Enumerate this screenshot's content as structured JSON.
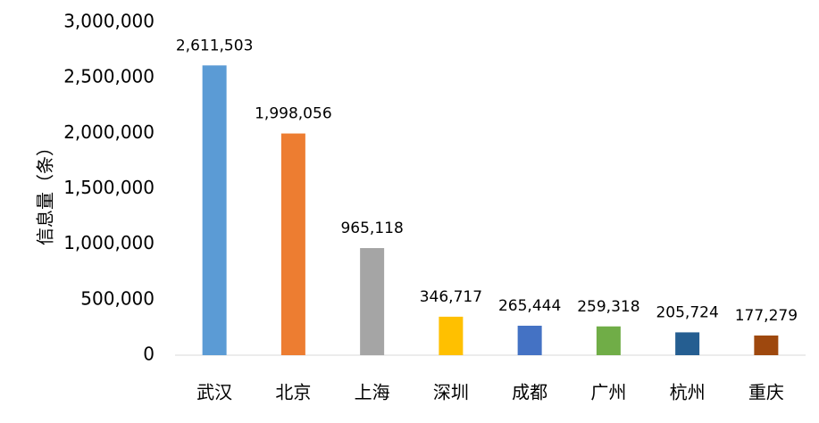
{
  "chart_data": {
    "type": "bar",
    "title": "",
    "xlabel": "",
    "ylabel": "信息量（条）",
    "ylim": [
      0,
      3000000
    ],
    "y_ticks": [
      0,
      500000,
      1000000,
      1500000,
      2000000,
      2500000,
      3000000
    ],
    "y_tick_labels": [
      "0",
      "500,000",
      "1,000,000",
      "1,500,000",
      "2,000,000",
      "2,500,000",
      "3,000,000"
    ],
    "categories": [
      "武汉",
      "北京",
      "上海",
      "深圳",
      "成都",
      "广州",
      "杭州",
      "重庆"
    ],
    "values": [
      2611503,
      1998056,
      965118,
      346717,
      265444,
      259318,
      205724,
      177279
    ],
    "value_labels": [
      "2,611,503",
      "1,998,056",
      "965,118",
      "346,717",
      "265,444",
      "259,318",
      "205,724",
      "177,279"
    ],
    "colors": [
      "#5b9bd5",
      "#ed7d31",
      "#a5a5a5",
      "#ffc000",
      "#4472c4",
      "#70ad47",
      "#255e91",
      "#9e480e"
    ],
    "grid": false,
    "legend": "none"
  }
}
